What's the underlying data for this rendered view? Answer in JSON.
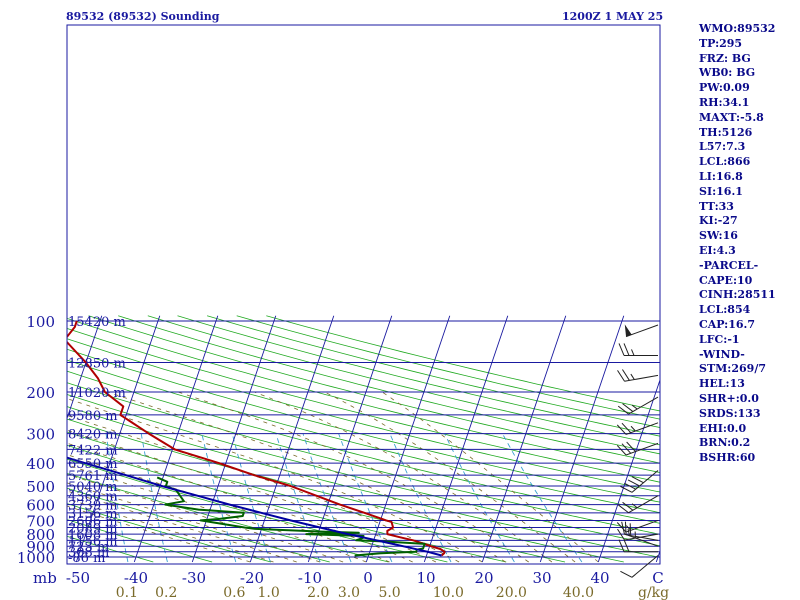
{
  "header": {
    "station": "89532 (89532) Sounding",
    "time": "1200Z  1 MAY 25"
  },
  "params": [
    "WMO:89532",
    "TP:295",
    "FRZ: BG",
    "WB0: BG",
    "PW:0.09",
    "RH:34.1",
    "MAXT:-5.8",
    "TH:5126",
    "L57:7.3",
    "LCL:866",
    "LI:16.8",
    "SI:16.1",
    "TT:33",
    "KI:-27",
    "SW:16",
    "EI:4.3",
    "-PARCEL-",
    "CAPE:10",
    "CINH:28511",
    "LCL:854",
    "CAP:16.7",
    "LFC:-1",
    "-WIND-",
    "STM:269/7",
    "HEL:13",
    "SHR+:0.0",
    "SRDS:133",
    "EHI:0.0",
    "BRN:0.2",
    "BSHR:60"
  ],
  "colors": {
    "isobar": "#1a1aa0",
    "isotherm": "#1a1aa0",
    "dry_adiabat": "#22aa22",
    "moist_adiabat": "#7a6a2a",
    "mixing_ratio": "#3aa0d0",
    "temperature": "#b00000",
    "dewpoint": "#006000",
    "parcel": "#0000a0",
    "text": "#0a0a8a"
  },
  "chart_data": {
    "type": "line",
    "title": "89532 (89532) Sounding",
    "subtitle": "1200Z  1 MAY 25",
    "xlabel": "C",
    "ylabel": "mb",
    "y_scale": "log-pressure",
    "ylim": [
      1000,
      100
    ],
    "xlim": [
      -50,
      50
    ],
    "pressure_ticks": [
      "100",
      "200",
      "300",
      "400",
      "500",
      "600",
      "700",
      "800",
      "900",
      "1000"
    ],
    "temperature_ticks": [
      "-50",
      "-40",
      "-30",
      "-20",
      "-10",
      "0",
      "10",
      "20",
      "30",
      "40",
      "C"
    ],
    "mixing_ratio_unit": "g/kg",
    "mixing_ratio_ticks": [
      "0.1",
      "0.2",
      "0.6",
      "1.0",
      "2.0",
      "3.0",
      "5.0",
      "10.0",
      "20.0",
      "40.0"
    ],
    "mixing_ratio_values": [
      0.1,
      0.2,
      0.6,
      1.0,
      2.0,
      3.0,
      5.0,
      10.0,
      20.0,
      40.0
    ],
    "height_labels": [
      {
        "p": 100,
        "label": "15420 m"
      },
      {
        "p": 150,
        "label": "12850 m"
      },
      {
        "p": 200,
        "label": "11020 m"
      },
      {
        "p": 250,
        "label": "9580 m"
      },
      {
        "p": 300,
        "label": "8420 m"
      },
      {
        "p": 350,
        "label": "7422 m"
      },
      {
        "p": 400,
        "label": "6550 m"
      },
      {
        "p": 450,
        "label": "5761 m"
      },
      {
        "p": 500,
        "label": "5040 m"
      },
      {
        "p": 550,
        "label": "4360 m"
      },
      {
        "p": 600,
        "label": "3739 m"
      },
      {
        "p": 650,
        "label": "3156 m"
      },
      {
        "p": 700,
        "label": "2606 m"
      },
      {
        "p": 750,
        "label": "2089 m"
      },
      {
        "p": 800,
        "label": "1608 m"
      },
      {
        "p": 850,
        "label": "1156 m"
      },
      {
        "p": 900,
        "label": "723 m"
      },
      {
        "p": 950,
        "label": "308 m"
      },
      {
        "p": 1000,
        "label": "-86 m"
      }
    ],
    "series": [
      {
        "key": "temperature",
        "points": [
          [
            985,
            12.6
          ],
          [
            965,
            12.9
          ],
          [
            950,
            12.9
          ],
          [
            925,
            12.0
          ],
          [
            900,
            10.2
          ],
          [
            880,
            9.0
          ],
          [
            850,
            6.8
          ],
          [
            825,
            4.4
          ],
          [
            800,
            2.0
          ],
          [
            775,
            1.8
          ],
          [
            750,
            2.6
          ],
          [
            710,
            2.0
          ],
          [
            700,
            1.0
          ],
          [
            650,
            -3.2
          ],
          [
            600,
            -7.9
          ],
          [
            550,
            -12.5
          ],
          [
            500,
            -17.5
          ],
          [
            450,
            -24.4
          ],
          [
            400,
            -31.2
          ],
          [
            350,
            -39.6
          ],
          [
            300,
            -45.0
          ],
          [
            250,
            -51.0
          ],
          [
            230,
            -51.0
          ],
          [
            200,
            -55.0
          ],
          [
            175,
            -57.0
          ],
          [
            150,
            -60.0
          ],
          [
            120,
            -65.0
          ],
          [
            106,
            -64.0
          ],
          [
            100,
            -64.0
          ]
        ]
      },
      {
        "key": "dewpoint",
        "points": [
          [
            985,
            -2.4
          ],
          [
            965,
            2.0
          ],
          [
            950,
            8.0
          ],
          [
            930,
            8.0
          ],
          [
            920,
            9.0
          ],
          [
            880,
            9.0
          ],
          [
            860,
            2.0
          ],
          [
            850,
            -3.0
          ],
          [
            830,
            -2.0
          ],
          [
            815,
            -2.0
          ],
          [
            800,
            -12.0
          ],
          [
            790,
            -3.0
          ],
          [
            780,
            -10.0
          ],
          [
            760,
            -21.0
          ],
          [
            750,
            -23.0
          ],
          [
            700,
            -31.0
          ],
          [
            690,
            -28.0
          ],
          [
            670,
            -24.0
          ],
          [
            650,
            -24.0
          ],
          [
            630,
            -32.0
          ],
          [
            600,
            -38.0
          ],
          [
            580,
            -35.0
          ],
          [
            550,
            -36.0
          ],
          [
            520,
            -37.0
          ],
          [
            500,
            -39.0
          ],
          [
            480,
            -39.0
          ],
          [
            460,
            -41.0
          ]
        ]
      },
      {
        "key": "parcel",
        "points": [
          [
            985,
            12.6
          ],
          [
            950,
            9.9
          ],
          [
            900,
            5.4
          ],
          [
            850,
            0.5
          ],
          [
            800,
            -4.8
          ],
          [
            750,
            -10.0
          ],
          [
            700,
            -15.5
          ],
          [
            650,
            -21.0
          ],
          [
            600,
            -26.9
          ],
          [
            550,
            -33.0
          ],
          [
            500,
            -39.7
          ],
          [
            450,
            -46.5
          ],
          [
            400,
            -54.3
          ],
          [
            350,
            -62.8
          ],
          [
            300,
            -72.2
          ],
          [
            250,
            -82.7
          ],
          [
            200,
            -94.8
          ],
          [
            150,
            -108.3
          ],
          [
            120,
            -117.8
          ]
        ]
      }
    ],
    "wind_barbs": [
      {
        "p": 985,
        "dir": 230,
        "kt": 10
      },
      {
        "p": 950,
        "dir": 270,
        "kt": 20
      },
      {
        "p": 900,
        "dir": 290,
        "kt": 25
      },
      {
        "p": 850,
        "dir": 280,
        "kt": 15
      },
      {
        "p": 800,
        "dir": 260,
        "kt": 10
      },
      {
        "p": 700,
        "dir": 250,
        "kt": 15
      },
      {
        "p": 550,
        "dir": 240,
        "kt": 25
      },
      {
        "p": 430,
        "dir": 230,
        "kt": 40
      },
      {
        "p": 330,
        "dir": 250,
        "kt": 30
      },
      {
        "p": 270,
        "dir": 250,
        "kt": 25
      },
      {
        "p": 210,
        "dir": 240,
        "kt": 25
      },
      {
        "p": 170,
        "dir": 260,
        "kt": 25
      },
      {
        "p": 140,
        "dir": 270,
        "kt": 25
      },
      {
        "p": 104,
        "dir": 250,
        "kt": 50
      }
    ],
    "grid": true
  }
}
